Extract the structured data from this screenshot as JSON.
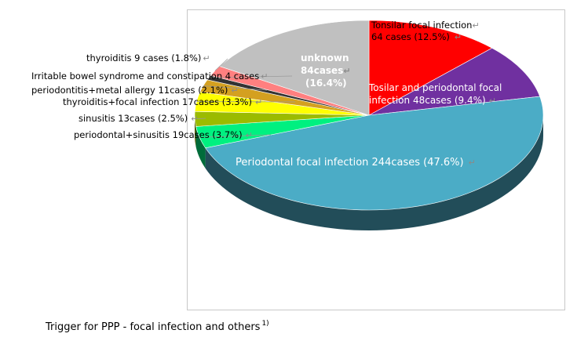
{
  "chart_data": {
    "type": "pie",
    "title": "",
    "series": [
      {
        "values": [
          {
            "label": "Tonsilar focal infection",
            "cases": 64,
            "pct": 12.5,
            "color": "#ff0000",
            "text": [
              "Tonsilar  focal infection",
              "64 cases (12.5%)"
            ]
          },
          {
            "label": "Tosilar and periodontal focal infection",
            "cases": 48,
            "pct": 9.4,
            "color": "#7030a0",
            "text": [
              "Tosilar  and periodontal focal",
              "infection   48cases (9.4%)"
            ]
          },
          {
            "label": "Periodontal focal infection",
            "cases": 244,
            "pct": 47.6,
            "color": "#4bacc6",
            "text": [
              "Periodontal focal infection  244cases (47.6%)"
            ]
          },
          {
            "label": "periodontal+sinusitis",
            "cases": 19,
            "pct": 3.7,
            "color": "#00f080",
            "text": [
              "periodontal+sinusitis  19cases (3.7%)"
            ]
          },
          {
            "label": "sinusitis",
            "cases": 13,
            "pct": 2.5,
            "color": "#9bbb00",
            "text": [
              "sinusitis  13cases (2.5%)"
            ]
          },
          {
            "label": "thyroiditis+focal infection",
            "cases": 17,
            "pct": 3.3,
            "color": "#ffff00",
            "text": [
              "thyroiditis+focal  infection  17cases (3.3%)"
            ]
          },
          {
            "label": "periodontitis+metal allergy",
            "cases": 11,
            "pct": 2.1,
            "color": "#d4a020",
            "text": [
              "periodontitis+metal  allergy    11cases (2.1%)"
            ]
          },
          {
            "label": "Irritable bowel syndrome and constipation",
            "cases": 4,
            "pct": 0.8,
            "color": "#333333",
            "text": [
              "Irritable bowel  syndrome  and constipation 4 cases"
            ]
          },
          {
            "label": "thyroiditis",
            "cases": 9,
            "pct": 1.8,
            "color": "#ff8080",
            "text": [
              "thyroiditis  9 cases (1.8%)"
            ]
          },
          {
            "label": "unknown",
            "cases": 84,
            "pct": 16.4,
            "color": "#c0c0c0",
            "text": [
              "unknown",
              "84cases",
              "(16.4%)"
            ]
          }
        ]
      }
    ],
    "legend": "none",
    "grid": false
  },
  "caption": {
    "text": "Trigger for PPP - focal infection and others",
    "footnote": "1)"
  },
  "icons": {
    "return_mark": "↵"
  }
}
